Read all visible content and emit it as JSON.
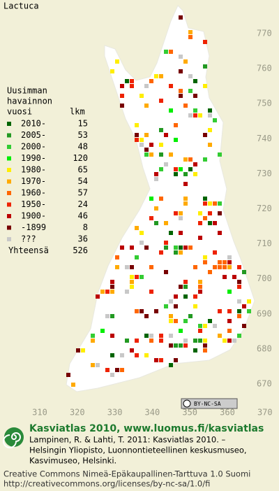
{
  "title": "Lactuca",
  "legend": {
    "heading": [
      "Uusimman",
      "havainnon"
    ],
    "col_year": "vuosi",
    "col_count": "lkm",
    "rows": [
      {
        "label": "2010-",
        "count": 15,
        "color": "#006400"
      },
      {
        "label": "2005-",
        "count": 53,
        "color": "#229922"
      },
      {
        "label": "2000-",
        "count": 48,
        "color": "#33cc33"
      },
      {
        "label": "1990-",
        "count": 120,
        "color": "#00ee00"
      },
      {
        "label": "1980-",
        "count": 65,
        "color": "#ffee00"
      },
      {
        "label": "1970-",
        "count": 54,
        "color": "#ffaa00"
      },
      {
        "label": "1960-",
        "count": 57,
        "color": "#ff6600"
      },
      {
        "label": "1950-",
        "count": 24,
        "color": "#ee2200"
      },
      {
        "label": "1900-",
        "count": 46,
        "color": "#bb0000"
      },
      {
        "label": "-1899",
        "count": 8,
        "color": "#770000"
      },
      {
        "label": "???",
        "count": 36,
        "color": "#c8c8c8"
      }
    ],
    "total": {
      "label": "Yhteensä",
      "count": 526
    }
  },
  "y_labels": [
    "770",
    "760",
    "750",
    "740",
    "730",
    "720",
    "710",
    "700",
    "690",
    "680",
    "670"
  ],
  "x_labels": [
    "310",
    "320",
    "330",
    "340",
    "350",
    "360",
    "370"
  ],
  "badge": "BY-NC-SA",
  "footer": {
    "brand": "Kasviatlas 2010, www.luomus.fi/kasviatlas",
    "citation": [
      "Lampinen, R. & Lahti, T. 2011: Kasviatlas 2010. –",
      "Helsingin Yliopisto, Luonnontieteellinen keskusmuseo,",
      "Kasvimuseo, Helsinki."
    ],
    "license": [
      "Creative Commons Nimeä-Epäkaupallinen-Tarttuva 1.0 Suomi",
      "http://creativecommons.org/licenses/by-nc-sa/1.0/fi"
    ]
  }
}
